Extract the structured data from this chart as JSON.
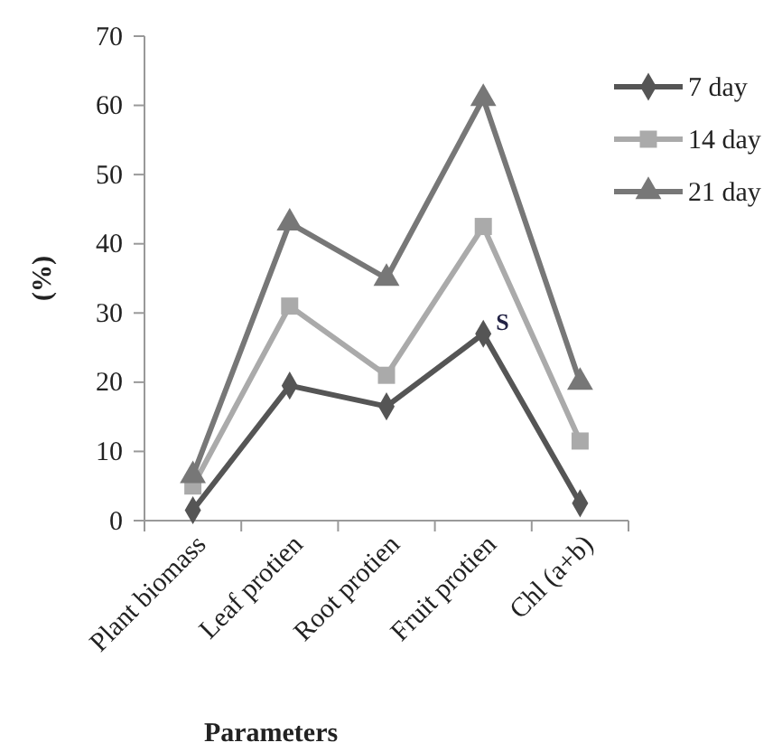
{
  "chart_data": {
    "type": "line",
    "xlabel": "Parameters",
    "ylabel": "(%)",
    "categories": [
      "Plant biomass",
      "Leaf protien",
      "Root protien",
      "Fruit protien",
      "Chl (a+b)"
    ],
    "series": [
      {
        "name": "7 day",
        "color": "#555555",
        "marker": "diamond",
        "values": [
          1.5,
          19.5,
          16.5,
          27,
          2.5
        ]
      },
      {
        "name": "14 day",
        "color": "#aaaaaa",
        "marker": "square",
        "values": [
          5,
          31,
          21,
          42.5,
          11.5
        ]
      },
      {
        "name": "21 day",
        "color": "#777777",
        "marker": "triangle",
        "values": [
          6.5,
          43,
          35,
          61,
          20
        ]
      }
    ],
    "ylim": [
      0,
      70
    ],
    "yticks": [
      0,
      10,
      20,
      30,
      40,
      50,
      60,
      70
    ],
    "grid": false,
    "legend": "right",
    "annotations": [
      {
        "text": "S",
        "x": "Fruit protien",
        "y": 27
      }
    ]
  }
}
